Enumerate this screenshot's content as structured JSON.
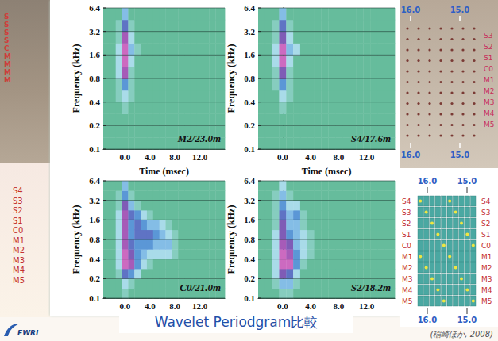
{
  "chart_data": [
    {
      "type": "heatmap",
      "title": "M2/23.0m",
      "x_label": "Time (msec)",
      "y_label": "Frequency (kHz)",
      "xlim": [
        -3.5,
        16
      ],
      "xticks": [
        {
          "value": 0,
          "label": "0.0"
        },
        {
          "value": 4,
          "label": "4.0"
        },
        {
          "value": 8,
          "label": "8.0"
        },
        {
          "value": 12,
          "label": "12.0"
        }
      ],
      "ylim": [
        0.1,
        6.4
      ],
      "yticks": [
        0.1,
        0.2,
        0.4,
        0.8,
        1.6,
        3.2,
        6.4
      ],
      "log": "y",
      "grid": true,
      "zlim": [
        0,
        9
      ],
      "x_edges": [
        -3.5,
        -2.5,
        -1.5,
        -0.5,
        0.5,
        1.5,
        2.5,
        3.5,
        4.5,
        5.5,
        6.5,
        7.5,
        8.5,
        9.5,
        10.5,
        11.5,
        12.5,
        13.5,
        14.5,
        16
      ],
      "y_edges": [
        0.1,
        0.141,
        0.2,
        0.283,
        0.4,
        0.566,
        0.8,
        1.131,
        1.6,
        2.263,
        3.2,
        4.525,
        6.4
      ],
      "cells": [
        [
          0,
          0,
          0,
          0,
          0,
          0,
          0,
          0,
          0,
          0,
          0,
          0,
          0,
          0,
          0,
          0,
          0,
          0,
          0
        ],
        [
          0,
          0,
          0,
          0,
          0,
          0,
          0,
          0,
          0,
          0,
          0,
          0,
          0,
          0,
          0,
          0,
          0,
          0,
          0
        ],
        [
          0,
          0,
          0,
          0,
          0,
          0,
          0,
          0,
          0,
          0,
          0,
          0,
          0,
          0,
          0,
          0,
          0,
          0,
          0
        ],
        [
          0,
          0,
          0,
          1,
          0,
          0,
          0,
          0,
          0,
          0,
          0,
          0,
          0,
          0,
          0,
          0,
          0,
          0,
          0
        ],
        [
          0,
          0,
          1,
          2,
          1,
          0,
          0,
          0,
          0,
          0,
          0,
          0,
          0,
          0,
          0,
          0,
          0,
          0,
          0
        ],
        [
          0,
          0,
          1,
          4,
          1,
          0,
          0,
          0,
          0,
          0,
          0,
          0,
          0,
          0,
          0,
          0,
          0,
          0,
          0
        ],
        [
          0,
          0,
          2,
          7,
          1,
          0,
          0,
          0,
          0,
          0,
          0,
          0,
          0,
          0,
          0,
          0,
          0,
          0,
          0
        ],
        [
          0,
          0,
          2,
          8,
          2,
          0,
          0,
          0,
          0,
          0,
          0,
          0,
          0,
          0,
          0,
          0,
          0,
          0,
          0
        ],
        [
          0,
          0,
          2,
          8,
          3,
          1,
          0,
          0,
          0,
          0,
          0,
          0,
          0,
          0,
          0,
          0,
          0,
          0,
          0
        ],
        [
          0,
          0,
          1,
          7,
          2,
          0,
          0,
          0,
          0,
          0,
          0,
          0,
          0,
          0,
          0,
          0,
          0,
          0,
          0
        ],
        [
          0,
          0,
          1,
          5,
          1,
          0,
          0,
          0,
          0,
          0,
          0,
          0,
          0,
          0,
          0,
          0,
          0,
          0,
          0
        ],
        [
          0,
          0,
          0,
          3,
          0,
          0,
          0,
          0,
          0,
          0,
          0,
          0,
          0,
          0,
          0,
          0,
          0,
          0,
          0
        ]
      ]
    },
    {
      "type": "heatmap",
      "title": "S4/17.6m",
      "x_label": "Time (msec)",
      "y_label": "Frequency (kHz)",
      "xlim": [
        -3.5,
        16
      ],
      "xticks": [
        {
          "value": 0,
          "label": "0.0"
        },
        {
          "value": 4,
          "label": "4.0"
        },
        {
          "value": 8,
          "label": "8.0"
        },
        {
          "value": 12,
          "label": "12.0"
        }
      ],
      "ylim": [
        0.1,
        6.4
      ],
      "yticks": [
        0.1,
        0.2,
        0.4,
        0.8,
        1.6,
        3.2,
        6.4
      ],
      "log": "y",
      "grid": true,
      "zlim": [
        0,
        9
      ],
      "x_edges": [
        -3.5,
        -2.5,
        -1.5,
        -0.5,
        0.5,
        1.5,
        2.5,
        3.5,
        4.5,
        5.5,
        6.5,
        7.5,
        8.5,
        9.5,
        10.5,
        11.5,
        12.5,
        13.5,
        14.5,
        16
      ],
      "y_edges": [
        0.1,
        0.141,
        0.2,
        0.283,
        0.4,
        0.566,
        0.8,
        1.131,
        1.6,
        2.263,
        3.2,
        4.525,
        6.4
      ],
      "cells": [
        [
          0,
          0,
          0,
          0,
          0,
          0,
          0,
          0,
          0,
          0,
          0,
          0,
          0,
          0,
          0,
          0,
          0,
          0,
          0
        ],
        [
          0,
          0,
          0,
          0,
          0,
          0,
          0,
          0,
          0,
          0,
          0,
          0,
          0,
          0,
          0,
          0,
          0,
          0,
          0
        ],
        [
          0,
          0,
          0,
          0,
          0,
          0,
          0,
          0,
          0,
          0,
          0,
          0,
          0,
          0,
          0,
          0,
          0,
          0,
          0
        ],
        [
          0,
          0,
          0,
          1,
          0,
          0,
          0,
          0,
          0,
          0,
          0,
          0,
          0,
          0,
          0,
          0,
          0,
          0,
          0
        ],
        [
          0,
          0,
          0,
          2,
          1,
          0,
          0,
          0,
          0,
          0,
          0,
          0,
          0,
          0,
          0,
          0,
          0,
          0,
          0
        ],
        [
          0,
          0,
          1,
          4,
          1,
          0,
          0,
          0,
          0,
          0,
          0,
          0,
          0,
          0,
          0,
          0,
          0,
          0,
          0
        ],
        [
          0,
          0,
          1,
          6,
          1,
          0,
          0,
          0,
          0,
          0,
          0,
          0,
          0,
          0,
          0,
          0,
          0,
          0,
          0
        ],
        [
          0,
          0,
          2,
          8,
          2,
          0,
          0,
          0,
          0,
          0,
          0,
          0,
          0,
          0,
          0,
          0,
          0,
          0,
          0
        ],
        [
          0,
          0,
          2,
          8,
          3,
          2,
          0,
          0,
          0,
          0,
          0,
          0,
          0,
          0,
          0,
          0,
          0,
          0,
          0
        ],
        [
          0,
          0,
          1,
          6,
          2,
          0,
          0,
          0,
          0,
          0,
          0,
          0,
          0,
          0,
          0,
          0,
          0,
          0,
          0
        ],
        [
          0,
          0,
          1,
          5,
          1,
          0,
          0,
          0,
          0,
          0,
          0,
          0,
          0,
          0,
          0,
          0,
          0,
          0,
          0
        ],
        [
          0,
          0,
          0,
          3,
          0,
          0,
          0,
          0,
          0,
          0,
          0,
          0,
          0,
          0,
          0,
          0,
          0,
          0,
          0
        ]
      ]
    },
    {
      "type": "heatmap",
      "title": "C0/21.0m",
      "y_label": "Frequency (kHz)",
      "xlim": [
        -3.5,
        16
      ],
      "xticks": [
        {
          "value": 0,
          "label": "0.0"
        },
        {
          "value": 4,
          "label": "4.0"
        },
        {
          "value": 8,
          "label": "8.0"
        },
        {
          "value": 12,
          "label": "12.0"
        }
      ],
      "ylim": [
        0.1,
        6.4
      ],
      "yticks": [
        0.1,
        0.2,
        0.4,
        0.8,
        1.6,
        3.2,
        6.4
      ],
      "log": "y",
      "grid": true,
      "zlim": [
        0,
        9
      ],
      "x_edges": [
        -3.5,
        -2.5,
        -1.5,
        -0.5,
        0.5,
        1.5,
        2.5,
        3.5,
        4.5,
        5.5,
        6.5,
        7.5,
        8.5,
        9.5,
        10.5,
        11.5,
        12.5,
        13.5,
        14.5,
        16
      ],
      "y_edges": [
        0.1,
        0.141,
        0.2,
        0.283,
        0.4,
        0.566,
        0.8,
        1.131,
        1.6,
        2.263,
        3.2,
        4.525,
        6.4
      ],
      "cells": [
        [
          0,
          0,
          0,
          1,
          0,
          0,
          0,
          0,
          0,
          0,
          0,
          0,
          0,
          0,
          0,
          0,
          0,
          0,
          0
        ],
        [
          0,
          0,
          0,
          2,
          1,
          0,
          0,
          0,
          0,
          0,
          0,
          0,
          0,
          0,
          0,
          0,
          0,
          0,
          0
        ],
        [
          0,
          0,
          1,
          5,
          4,
          2,
          0,
          0,
          0,
          0,
          0,
          0,
          0,
          0,
          0,
          0,
          0,
          0,
          0
        ],
        [
          0,
          0,
          2,
          8,
          7,
          4,
          2,
          1,
          0,
          0,
          0,
          0,
          0,
          0,
          0,
          0,
          0,
          0,
          0
        ],
        [
          0,
          0,
          2,
          8,
          6,
          4,
          3,
          2,
          2,
          2,
          2,
          1,
          0,
          0,
          0,
          0,
          0,
          0,
          0
        ],
        [
          0,
          0,
          2,
          7,
          5,
          4,
          4,
          4,
          3,
          3,
          3,
          1,
          0,
          0,
          0,
          0,
          0,
          0,
          0
        ],
        [
          0,
          0,
          2,
          7,
          4,
          5,
          5,
          5,
          4,
          3,
          2,
          1,
          0,
          0,
          0,
          0,
          0,
          0,
          0
        ],
        [
          0,
          0,
          2,
          7,
          4,
          5,
          4,
          3,
          3,
          2,
          1,
          0,
          0,
          0,
          0,
          0,
          0,
          0,
          0
        ],
        [
          0,
          0,
          2,
          7,
          5,
          4,
          2,
          1,
          0,
          0,
          0,
          0,
          0,
          0,
          0,
          0,
          0,
          0,
          0
        ],
        [
          0,
          0,
          1,
          6,
          3,
          1,
          0,
          0,
          0,
          0,
          0,
          0,
          0,
          0,
          0,
          0,
          0,
          0,
          0
        ],
        [
          0,
          0,
          1,
          4,
          1,
          0,
          0,
          0,
          0,
          0,
          0,
          0,
          0,
          0,
          0,
          0,
          0,
          0,
          0
        ],
        [
          0,
          0,
          0,
          3,
          0,
          0,
          0,
          0,
          0,
          0,
          0,
          0,
          0,
          0,
          0,
          0,
          0,
          0,
          0
        ]
      ]
    },
    {
      "type": "heatmap",
      "title": "S2/18.2m",
      "y_label": "Frequency (kHz)",
      "xlim": [
        -3.5,
        16
      ],
      "xticks": [
        {
          "value": 0,
          "label": "0.0"
        },
        {
          "value": 4,
          "label": "4.0"
        },
        {
          "value": 8,
          "label": "8.0"
        },
        {
          "value": 12,
          "label": "12.0"
        }
      ],
      "ylim": [
        0.1,
        6.4
      ],
      "yticks": [
        0.1,
        0.2,
        0.4,
        0.8,
        1.6,
        3.2,
        6.4
      ],
      "log": "y",
      "grid": true,
      "zlim": [
        0,
        9
      ],
      "x_edges": [
        -3.5,
        -2.5,
        -1.5,
        -0.5,
        0.5,
        1.5,
        2.5,
        3.5,
        4.5,
        5.5,
        6.5,
        7.5,
        8.5,
        9.5,
        10.5,
        11.5,
        12.5,
        13.5,
        14.5,
        16
      ],
      "y_edges": [
        0.1,
        0.141,
        0.2,
        0.283,
        0.4,
        0.566,
        0.8,
        1.131,
        1.6,
        2.263,
        3.2,
        4.525,
        6.4
      ],
      "cells": [
        [
          0,
          0,
          0,
          1,
          1,
          0,
          0,
          0,
          0,
          0,
          0,
          0,
          0,
          0,
          0,
          0,
          0,
          0,
          0
        ],
        [
          0,
          0,
          1,
          3,
          3,
          1,
          0,
          0,
          0,
          0,
          0,
          0,
          0,
          0,
          0,
          0,
          0,
          0,
          0
        ],
        [
          0,
          0,
          2,
          6,
          5,
          2,
          0,
          0,
          0,
          0,
          0,
          0,
          0,
          0,
          0,
          0,
          0,
          0,
          0
        ],
        [
          0,
          0,
          2,
          8,
          8,
          4,
          1,
          0,
          0,
          0,
          0,
          0,
          0,
          0,
          0,
          0,
          0,
          0,
          0
        ],
        [
          0,
          0,
          2,
          8,
          7,
          4,
          2,
          1,
          0,
          0,
          0,
          0,
          0,
          0,
          0,
          0,
          0,
          0,
          0
        ],
        [
          0,
          0,
          2,
          7,
          6,
          3,
          2,
          1,
          0,
          0,
          0,
          0,
          0,
          0,
          0,
          0,
          0,
          0,
          0
        ],
        [
          0,
          0,
          2,
          6,
          4,
          3,
          2,
          1,
          0,
          0,
          0,
          0,
          0,
          0,
          0,
          0,
          0,
          0,
          0
        ],
        [
          0,
          0,
          1,
          6,
          3,
          3,
          1,
          0,
          0,
          0,
          0,
          0,
          0,
          0,
          0,
          0,
          0,
          0,
          0
        ],
        [
          0,
          0,
          1,
          5,
          3,
          4,
          1,
          0,
          0,
          0,
          0,
          0,
          0,
          0,
          0,
          0,
          0,
          0,
          0
        ],
        [
          0,
          0,
          1,
          4,
          2,
          2,
          0,
          0,
          0,
          0,
          0,
          0,
          0,
          0,
          0,
          0,
          0,
          0,
          0
        ],
        [
          0,
          0,
          1,
          3,
          1,
          0,
          0,
          0,
          0,
          0,
          0,
          0,
          0,
          0,
          0,
          0,
          0,
          0,
          0
        ],
        [
          0,
          0,
          0,
          2,
          0,
          0,
          0,
          0,
          0,
          0,
          0,
          0,
          0,
          0,
          0,
          0,
          0,
          0,
          0
        ]
      ]
    }
  ],
  "slide": {
    "caption": "Wavelet Periodgram比較",
    "citation": "(稲崎ほか, 2008)",
    "logo": "FWRI",
    "left_photo": {
      "labels": [
        "S",
        "S",
        "S",
        "S",
        "C",
        "M",
        "M",
        "M",
        "M"
      ]
    },
    "left_labels": [
      "S4",
      "S3",
      "S2",
      "S1",
      "C0",
      "M1",
      "M2",
      "M3",
      "M4",
      "M5"
    ],
    "right_photo": {
      "top_ticks": [
        "16.0",
        "15.0"
      ],
      "bottom_ticks": [
        "16.0",
        "15.0"
      ],
      "rows": [
        "S3",
        "S2",
        "S1",
        "C0",
        "M1",
        "M2",
        "M3",
        "M4",
        "M5"
      ]
    },
    "right_grid": {
      "top_ticks": [
        "16.0",
        "15.0"
      ],
      "bottom_ticks": [
        "16.0",
        "15.0"
      ],
      "rows": [
        "S4",
        "S3",
        "S2",
        "S1",
        "C0",
        "M1",
        "M2",
        "M3",
        "M4",
        "M5"
      ]
    }
  }
}
